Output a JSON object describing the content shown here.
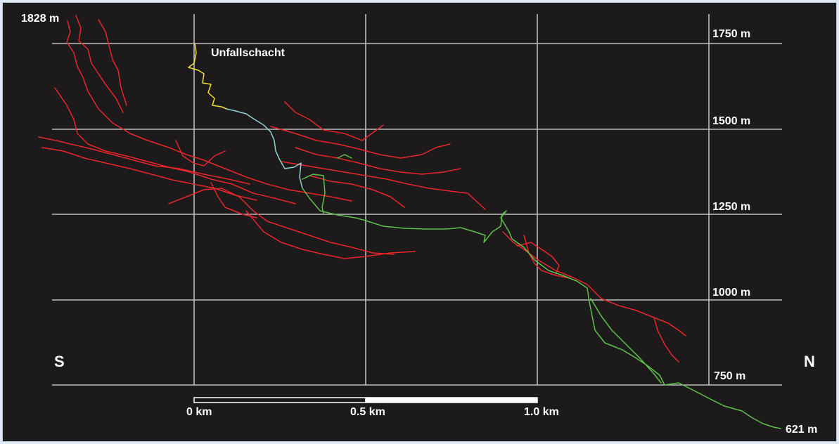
{
  "labels": {
    "top_elevation": "1828 m",
    "shaft": "Unfallschacht",
    "south": "S",
    "north": "N",
    "bottom_elevation": "621 m"
  },
  "elevation_lines": [
    "1750 m",
    "1500 m",
    "1250 m",
    "1000 m",
    "750 m"
  ],
  "scale_bar": {
    "labels": [
      "0 km",
      "0.5 km",
      "1.0 km"
    ]
  },
  "colors": {
    "background": "#1c1a1a",
    "grid": "#bdbdbd",
    "main_passages": "#e8262b",
    "shaft_passage": "#f2e12a",
    "connection_passage": "#8fd3d6",
    "lower_passage": "#5cc24a"
  }
}
